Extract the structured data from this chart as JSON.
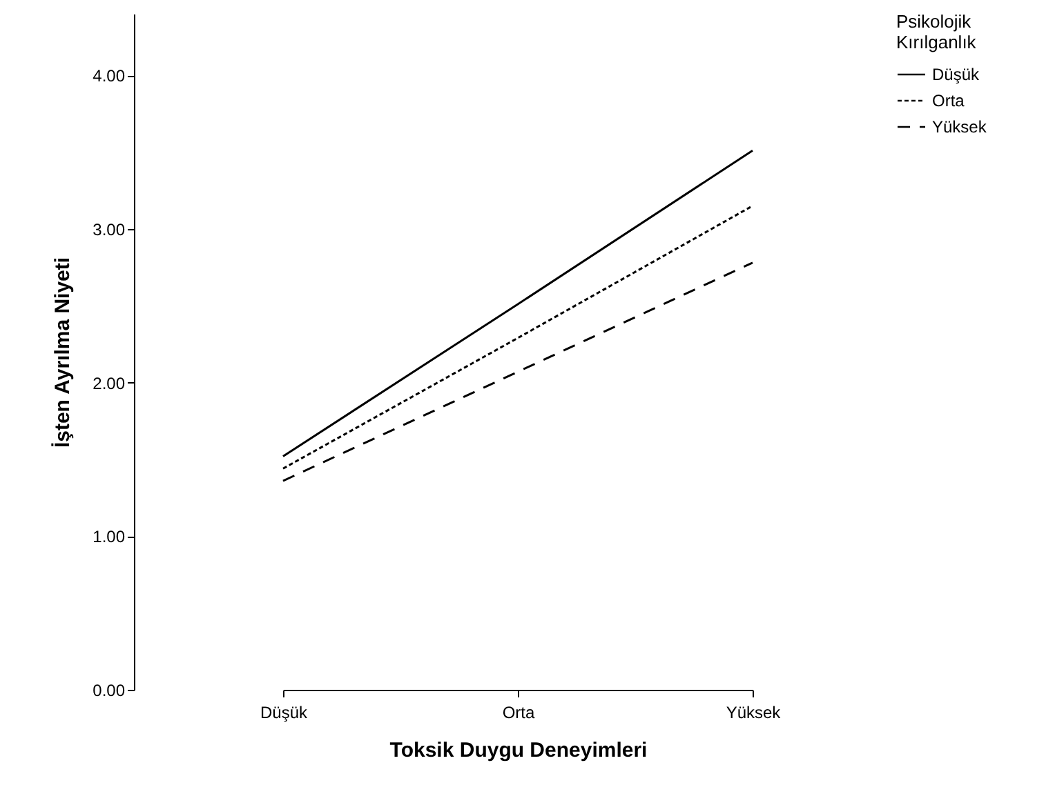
{
  "chart_data": {
    "type": "line",
    "xlabel": "Toksik Duygu Deneyimleri",
    "ylabel": "İşten Ayrılma Niyeti",
    "legend_title": "Psikolojik Kırılganlık",
    "categories": [
      "Düşük",
      "Orta",
      "Yüksek"
    ],
    "series": [
      {
        "name": "Düşük",
        "color": "#000000",
        "line_style": "solid",
        "values": [
          1.52,
          2.51,
          3.51
        ]
      },
      {
        "name": "Orta",
        "color": "#000000",
        "line_style": "dotted",
        "values": [
          1.44,
          2.29,
          3.15
        ]
      },
      {
        "name": "Yüksek",
        "color": "#000000",
        "line_style": "dashed",
        "values": [
          1.36,
          2.07,
          2.78
        ]
      }
    ],
    "ylim": [
      0,
      4.4
    ],
    "yticks": [
      {
        "value": 0,
        "label": "0.00"
      },
      {
        "value": 1,
        "label": "1.00"
      },
      {
        "value": 2,
        "label": "2.00"
      },
      {
        "value": 3,
        "label": "3.00"
      },
      {
        "value": 4,
        "label": "4.00"
      }
    ],
    "grid": false,
    "legend": "top right",
    "marker": "none"
  }
}
